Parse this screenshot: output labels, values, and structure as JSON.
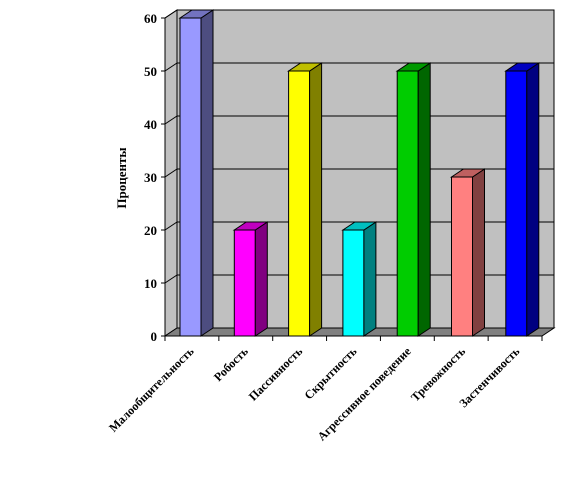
{
  "chart_data": {
    "type": "bar",
    "ylabel": "Проценты",
    "xlabel": "",
    "title": "",
    "ylim": [
      0,
      60
    ],
    "yticks": [
      0,
      10,
      20,
      30,
      40,
      50,
      60
    ],
    "grid": true,
    "categories": [
      "Малообщительность",
      "Робость",
      "Пассивность",
      "Скрытность",
      "Агрессивное поведение",
      "Тревожность",
      "Застенчивость"
    ],
    "values": [
      60,
      20,
      50,
      20,
      50,
      30,
      50
    ],
    "colors": [
      "#9999FF",
      "#FF00FF",
      "#FFFF00",
      "#00FFFF",
      "#00CC00",
      "#FF8080",
      "#0000FF"
    ],
    "background_color": "#C0C0C0"
  }
}
